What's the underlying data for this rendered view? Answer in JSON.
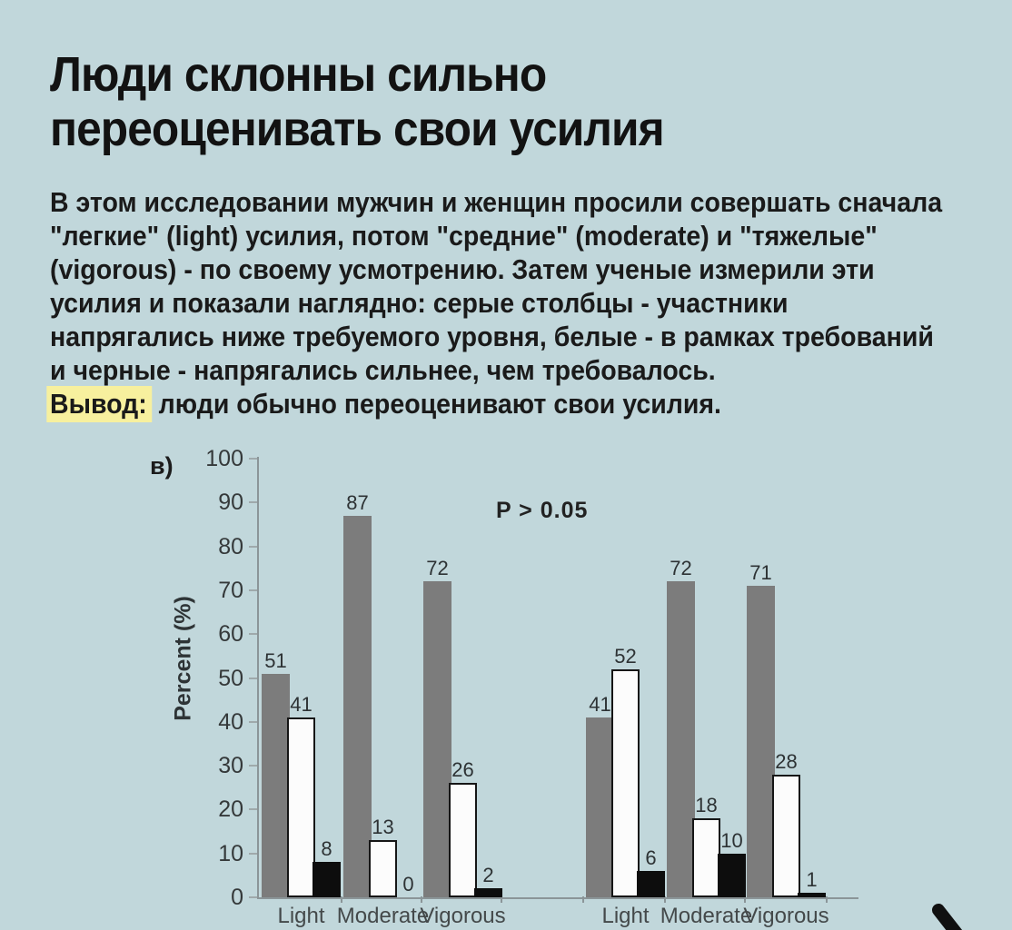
{
  "page": {
    "background_color": "#c1d7db",
    "text_color": "#161616"
  },
  "header": {
    "title_lines": [
      "Люди склонны сильно",
      "переоценивать свои усилия"
    ]
  },
  "body": {
    "lines": [
      "В этом исследовании мужчин и женщин просили совершать сначала",
      "\"легкие\" (light) усилия, потом \"средние\" (moderate) и \"тяжелые\"",
      "(vigorous) - по своему усмотрению. Затем ученые измерили эти",
      "усилия и показали наглядно: серые столбцы - участники",
      "напрягались ниже требуемого уровня, белые - в рамках требований",
      "и черные - напрягались сильнее, чем требовалось."
    ],
    "conclusion_label": "Вывод:",
    "conclusion_text": "люди обычно переоценивают свои усилия.",
    "highlight_color": "#f7f09e"
  },
  "chart_data": {
    "type": "bar",
    "panel_label": "в)",
    "ylabel": "Percent (%)",
    "annotation": "P > 0.05",
    "ylim": [
      0,
      100
    ],
    "yticks": [
      100,
      90,
      80,
      70,
      60,
      50,
      40,
      30,
      20,
      10,
      0
    ],
    "grid": false,
    "legend_position": "none",
    "series_meta": [
      {
        "key": "gray",
        "color": "#7c7c7c",
        "border": ""
      },
      {
        "key": "white",
        "color": "#fcfcfc",
        "border": "#161616"
      },
      {
        "key": "black",
        "color": "#0d0d0d",
        "border": ""
      }
    ],
    "groups": [
      {
        "categories": [
          "Light",
          "Moderate",
          "Vigorous"
        ],
        "series": [
          {
            "key": "gray",
            "values": [
              51,
              87,
              72
            ]
          },
          {
            "key": "white",
            "values": [
              41,
              13,
              26
            ]
          },
          {
            "key": "black",
            "values": [
              8,
              0,
              2
            ]
          }
        ]
      },
      {
        "categories": [
          "Light",
          "Moderate",
          "Vigorous"
        ],
        "series": [
          {
            "key": "gray",
            "values": [
              41,
              72,
              71
            ]
          },
          {
            "key": "white",
            "values": [
              52,
              18,
              28
            ]
          },
          {
            "key": "black",
            "values": [
              6,
              10,
              1
            ]
          }
        ]
      }
    ]
  }
}
